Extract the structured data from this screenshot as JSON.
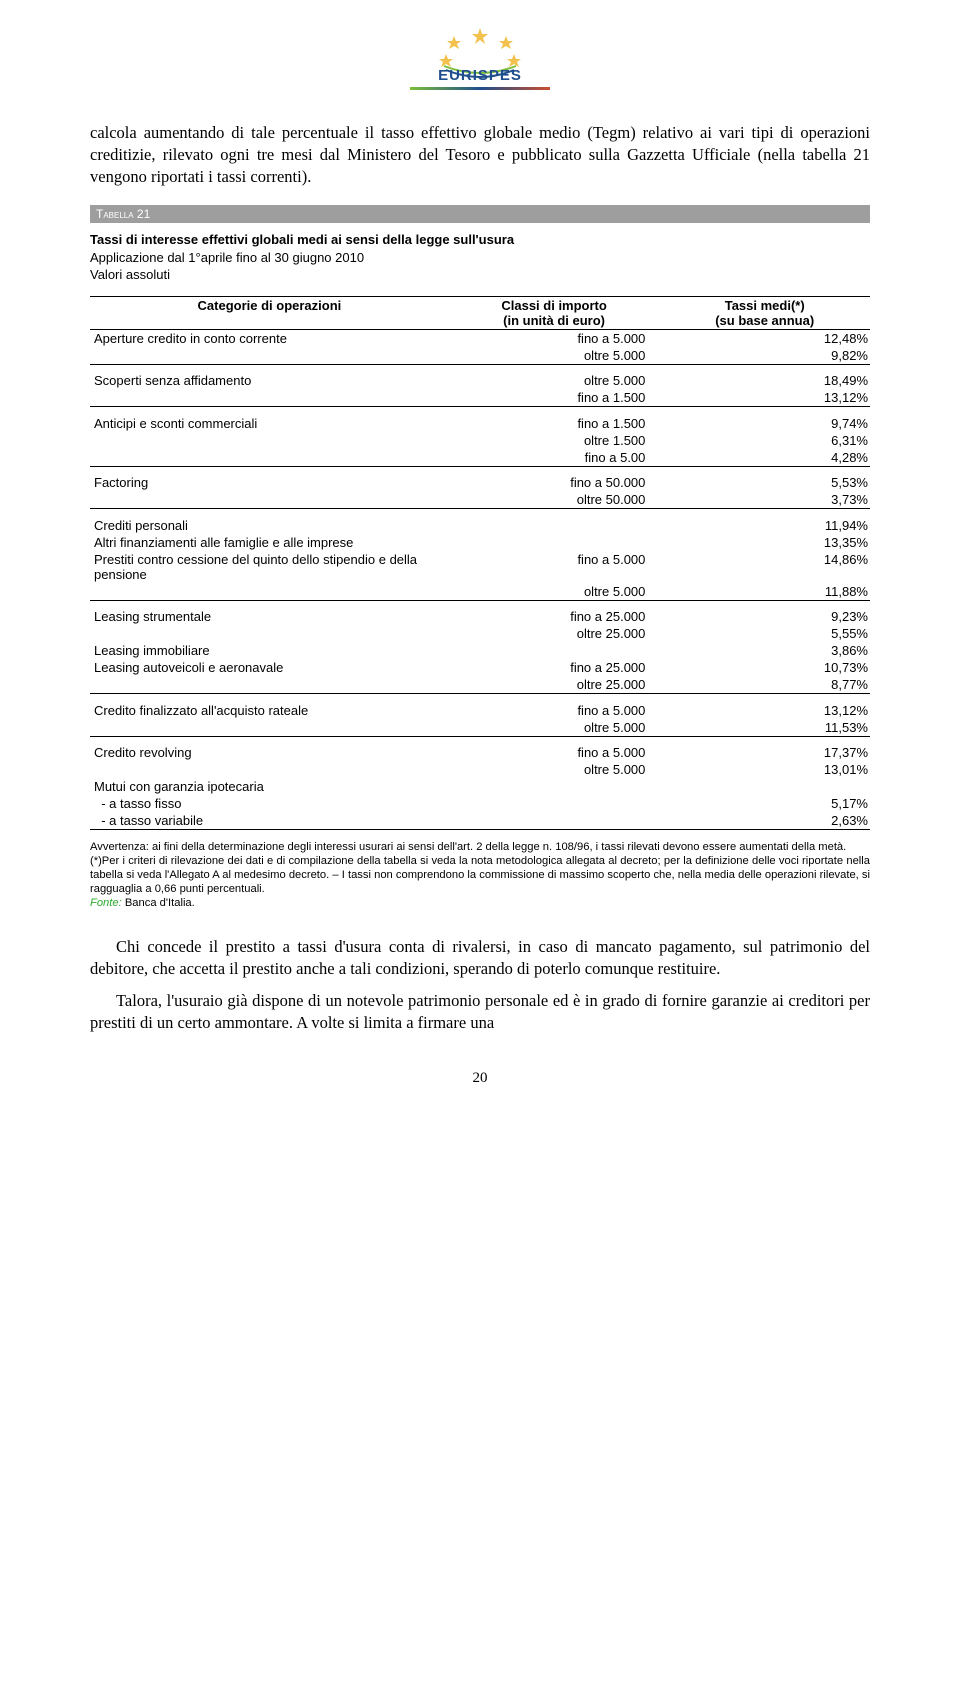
{
  "logo": {
    "text": "EURISPES",
    "star_color": "#f2c14e",
    "blue": "#1f4e8c"
  },
  "para_intro": "calcola aumentando di tale percentuale il tasso effettivo globale medio (Tegm) relativo ai vari tipi di operazioni creditizie, rilevato ogni tre mesi dal Ministero del Tesoro e pubblicato sulla Gazzetta Ufficiale (nella tabella 21 vengono riportati i tassi correnti).",
  "table": {
    "bar_label": "Tabella 21",
    "title_line1": "Tassi di interesse effettivi globali medi ai sensi della legge sull'usura",
    "title_line2": "Applicazione dal 1°aprile fino al 30 giugno 2010",
    "title_line3": "Valori assoluti",
    "header": {
      "col1": "Categorie di operazioni",
      "col2a": "Classi di importo",
      "col2b": "(in unità di euro)",
      "col3a": "Tassi medi(*)",
      "col3b": "(su base annua)"
    },
    "groups": [
      {
        "rows": [
          {
            "cat": "Aperture credito in conto corrente",
            "amt": "fino a 5.000",
            "rate": "12,48%"
          },
          {
            "cat": "",
            "amt": "oltre 5.000",
            "rate": "9,82%"
          }
        ]
      },
      {
        "rows": [
          {
            "cat": "Scoperti senza affidamento",
            "amt": "oltre 5.000",
            "rate": "18,49%"
          },
          {
            "cat": "",
            "amt": "fino a 1.500",
            "rate": "13,12%"
          }
        ]
      },
      {
        "rows": [
          {
            "cat": "Anticipi e sconti commerciali",
            "amt": "fino a 1.500",
            "rate": "9,74%"
          },
          {
            "cat": "",
            "amt": "oltre 1.500",
            "rate": "6,31%"
          },
          {
            "cat": "",
            "amt": "fino a 5.00",
            "rate": "4,28%"
          }
        ]
      },
      {
        "rows": [
          {
            "cat": "Factoring",
            "amt": "fino a 50.000",
            "rate": "5,53%"
          },
          {
            "cat": "",
            "amt": "oltre 50.000",
            "rate": "3,73%"
          }
        ]
      },
      {
        "rows": [
          {
            "cat": "Crediti personali",
            "amt": "",
            "rate": "11,94%"
          },
          {
            "cat": "Altri finanziamenti alle famiglie e alle imprese",
            "amt": "",
            "rate": "13,35%"
          },
          {
            "cat": "Prestiti contro cessione del quinto dello stipendio e della pensione",
            "amt": "fino a 5.000",
            "rate": "14,86%"
          },
          {
            "cat": "",
            "amt": "oltre 5.000",
            "rate": "11,88%"
          }
        ]
      },
      {
        "rows": [
          {
            "cat": "Leasing strumentale",
            "amt": "fino a 25.000",
            "rate": "9,23%"
          },
          {
            "cat": "",
            "amt": "oltre 25.000",
            "rate": "5,55%"
          },
          {
            "cat": "Leasing immobiliare",
            "amt": "",
            "rate": "3,86%"
          },
          {
            "cat": "Leasing autoveicoli e aeronavale",
            "amt": "fino a 25.000",
            "rate": "10,73%"
          },
          {
            "cat": "",
            "amt": "oltre 25.000",
            "rate": "8,77%"
          }
        ]
      },
      {
        "rows": [
          {
            "cat": "Credito finalizzato all'acquisto rateale",
            "amt": "fino a 5.000",
            "rate": "13,12%"
          },
          {
            "cat": "",
            "amt": "oltre 5.000",
            "rate": "11,53%"
          }
        ]
      },
      {
        "rows": [
          {
            "cat": "Credito revolving",
            "amt": "fino a 5.000",
            "rate": "17,37%"
          },
          {
            "cat": "",
            "amt": "oltre 5.000",
            "rate": "13,01%"
          },
          {
            "cat": "Mutui con garanzia ipotecaria",
            "amt": "",
            "rate": ""
          },
          {
            "cat": "  - a tasso fisso",
            "amt": "",
            "rate": "5,17%"
          },
          {
            "cat": "  - a tasso variabile",
            "amt": "",
            "rate": "2,63%"
          }
        ]
      }
    ]
  },
  "footnotes": {
    "line1": "Avvertenza: ai fini della determinazione degli interessi usurari ai sensi dell'art. 2 della legge n. 108/96, i tassi rilevati devono essere aumentati della metà.",
    "line2": "(*)Per i criteri di rilevazione dei dati e di compilazione della tabella si veda la nota metodologica allegata al decreto; per la definizione delle voci riportate nella tabella si veda l'Allegato A al medesimo decreto. – I tassi non comprendono la commissione di massimo scoperto che, nella media delle operazioni rilevate, si ragguaglia a 0,66 punti percentuali.",
    "source_label": "Fonte:",
    "source_value": " Banca d'Italia."
  },
  "para_out1": "Chi concede il prestito a tassi d'usura conta di rivalersi, in caso di mancato pagamento, sul patrimonio del debitore, che accetta il prestito anche a tali condizioni, sperando di poterlo comunque restituire.",
  "para_out2": "Talora, l'usuraio già dispone di un notevole patrimonio personale ed è in grado di fornire garanzie ai creditori per prestiti di un certo ammontare. A volte si limita a firmare una",
  "page_number": "20"
}
